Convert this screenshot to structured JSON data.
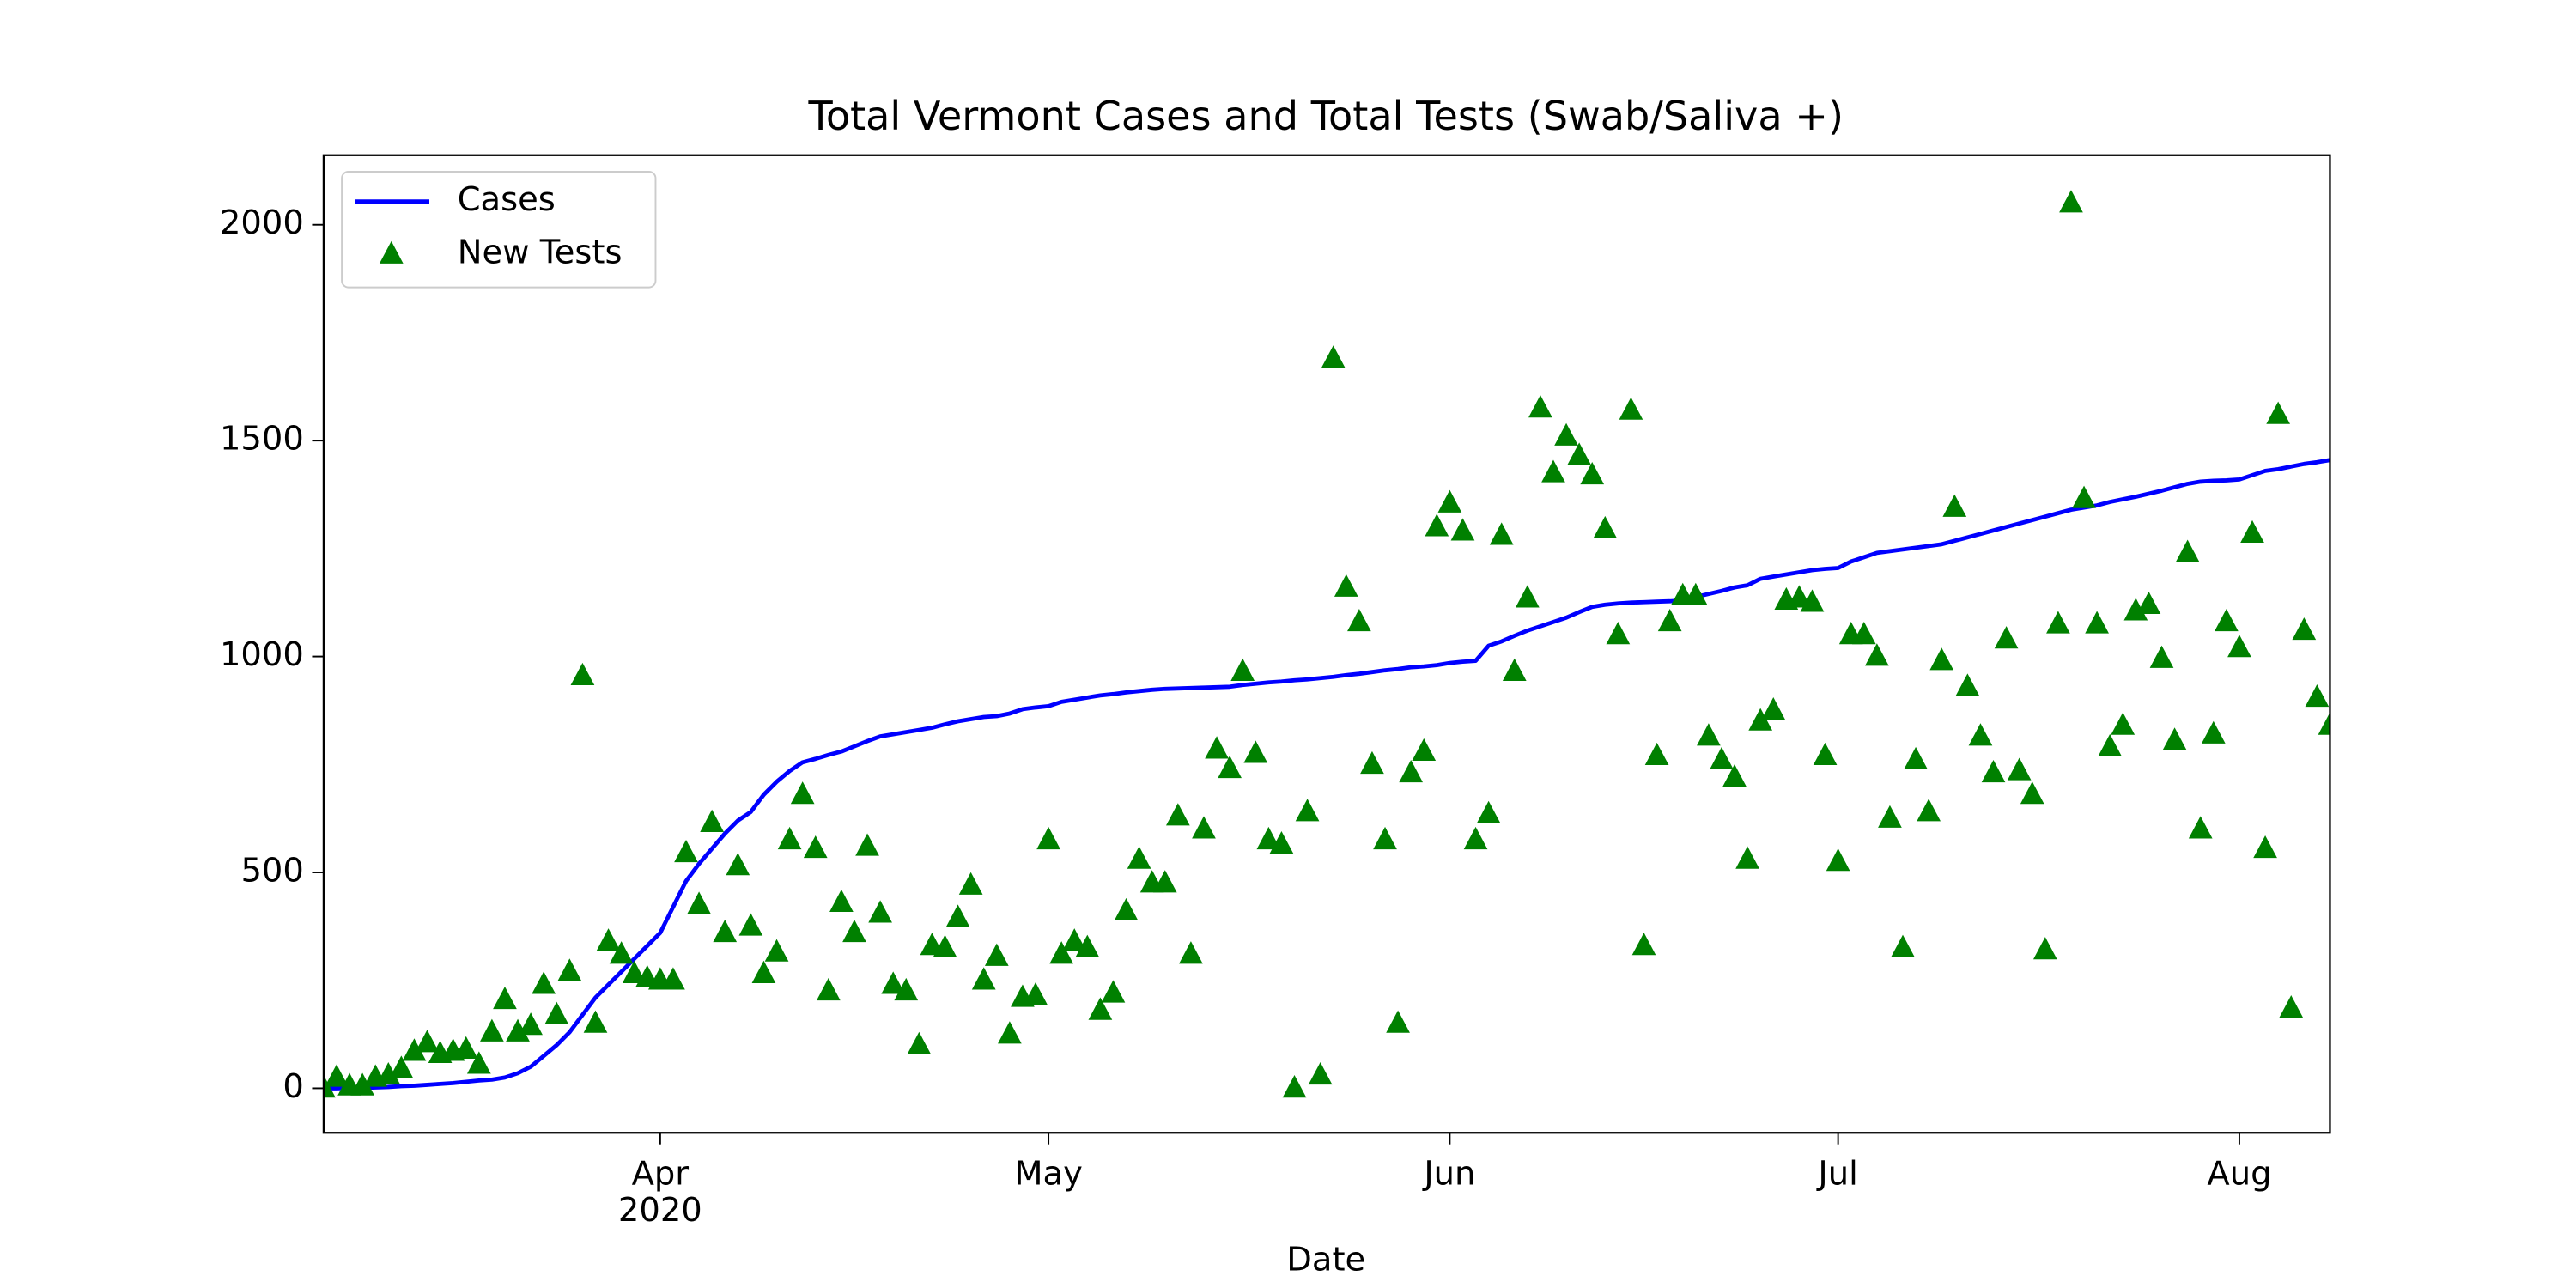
{
  "chart_data": {
    "type": "line_scatter",
    "title": "Total Vermont Cases and Total Tests (Swab/Saliva +)",
    "xlabel": "Date",
    "x_year_label": "2020",
    "x": [
      "2020-03-06",
      "2020-03-07",
      "2020-03-08",
      "2020-03-09",
      "2020-03-10",
      "2020-03-11",
      "2020-03-12",
      "2020-03-13",
      "2020-03-14",
      "2020-03-15",
      "2020-03-16",
      "2020-03-17",
      "2020-03-18",
      "2020-03-19",
      "2020-03-20",
      "2020-03-21",
      "2020-03-22",
      "2020-03-23",
      "2020-03-24",
      "2020-03-25",
      "2020-03-26",
      "2020-03-27",
      "2020-03-28",
      "2020-03-29",
      "2020-03-30",
      "2020-03-31",
      "2020-04-01",
      "2020-04-02",
      "2020-04-03",
      "2020-04-04",
      "2020-04-05",
      "2020-04-06",
      "2020-04-07",
      "2020-04-08",
      "2020-04-09",
      "2020-04-10",
      "2020-04-11",
      "2020-04-12",
      "2020-04-13",
      "2020-04-14",
      "2020-04-15",
      "2020-04-16",
      "2020-04-17",
      "2020-04-18",
      "2020-04-19",
      "2020-04-20",
      "2020-04-21",
      "2020-04-22",
      "2020-04-23",
      "2020-04-24",
      "2020-04-25",
      "2020-04-26",
      "2020-04-27",
      "2020-04-28",
      "2020-04-29",
      "2020-04-30",
      "2020-05-01",
      "2020-05-02",
      "2020-05-03",
      "2020-05-04",
      "2020-05-05",
      "2020-05-06",
      "2020-05-07",
      "2020-05-08",
      "2020-05-09",
      "2020-05-10",
      "2020-05-11",
      "2020-05-12",
      "2020-05-13",
      "2020-05-14",
      "2020-05-15",
      "2020-05-16",
      "2020-05-17",
      "2020-05-18",
      "2020-05-19",
      "2020-05-20",
      "2020-05-21",
      "2020-05-22",
      "2020-05-23",
      "2020-05-24",
      "2020-05-25",
      "2020-05-26",
      "2020-05-27",
      "2020-05-28",
      "2020-05-29",
      "2020-05-30",
      "2020-05-31",
      "2020-06-01",
      "2020-06-02",
      "2020-06-03",
      "2020-06-04",
      "2020-06-05",
      "2020-06-06",
      "2020-06-07",
      "2020-06-08",
      "2020-06-09",
      "2020-06-10",
      "2020-06-11",
      "2020-06-12",
      "2020-06-13",
      "2020-06-14",
      "2020-06-15",
      "2020-06-16",
      "2020-06-17",
      "2020-06-18",
      "2020-06-19",
      "2020-06-20",
      "2020-06-21",
      "2020-06-22",
      "2020-06-23",
      "2020-06-24",
      "2020-06-25",
      "2020-06-26",
      "2020-06-27",
      "2020-06-28",
      "2020-06-29",
      "2020-06-30",
      "2020-07-01",
      "2020-07-02",
      "2020-07-03",
      "2020-07-04",
      "2020-07-05",
      "2020-07-06",
      "2020-07-07",
      "2020-07-08",
      "2020-07-09",
      "2020-07-10",
      "2020-07-11",
      "2020-07-12",
      "2020-07-13",
      "2020-07-14",
      "2020-07-15",
      "2020-07-16",
      "2020-07-17",
      "2020-07-18",
      "2020-07-19",
      "2020-07-20",
      "2020-07-21",
      "2020-07-22",
      "2020-07-23",
      "2020-07-24",
      "2020-07-25",
      "2020-07-26",
      "2020-07-27",
      "2020-07-28",
      "2020-07-29",
      "2020-07-30",
      "2020-07-31",
      "2020-08-01",
      "2020-08-02",
      "2020-08-03",
      "2020-08-04",
      "2020-08-05",
      "2020-08-06",
      "2020-08-07",
      "2020-08-08"
    ],
    "series": [
      {
        "name": "Cases",
        "color": "#0000ff",
        "style": "line",
        "values": [
          0,
          0,
          1,
          1,
          2,
          3,
          5,
          6,
          8,
          10,
          12,
          15,
          18,
          20,
          25,
          35,
          50,
          75,
          100,
          130,
          170,
          210,
          240,
          270,
          300,
          330,
          360,
          420,
          480,
          520,
          555,
          590,
          620,
          640,
          680,
          710,
          735,
          755,
          763,
          772,
          780,
          792,
          804,
          815,
          820,
          825,
          830,
          835,
          843,
          850,
          855,
          860,
          862,
          868,
          878,
          882,
          885,
          895,
          900,
          905,
          910,
          913,
          917,
          920,
          923,
          925,
          926,
          927,
          928,
          929,
          930,
          934,
          937,
          940,
          942,
          945,
          947,
          950,
          953,
          957,
          960,
          964,
          968,
          971,
          975,
          977,
          980,
          985,
          988,
          990,
          1025,
          1035,
          1048,
          1060,
          1070,
          1080,
          1090,
          1103,
          1115,
          1120,
          1123,
          1125,
          1126,
          1127,
          1128,
          1130,
          1138,
          1145,
          1152,
          1160,
          1165,
          1180,
          1185,
          1190,
          1195,
          1200,
          1203,
          1205,
          1220,
          1230,
          1240,
          1244,
          1248,
          1252,
          1256,
          1260,
          1268,
          1276,
          1284,
          1292,
          1300,
          1308,
          1316,
          1324,
          1332,
          1340,
          1345,
          1350,
          1358,
          1364,
          1370,
          1377,
          1384,
          1392,
          1400,
          1405,
          1407,
          1408,
          1410,
          1420,
          1430,
          1434,
          1440,
          1446,
          1450,
          1455
        ]
      },
      {
        "name": "New Tests",
        "color": "#008000",
        "style": "triangle",
        "values": [
          0,
          25,
          5,
          5,
          25,
          30,
          45,
          85,
          105,
          80,
          85,
          90,
          55,
          130,
          205,
          130,
          145,
          240,
          170,
          270,
          955,
          150,
          340,
          310,
          265,
          255,
          250,
          250,
          545,
          425,
          615,
          360,
          515,
          375,
          265,
          315,
          575,
          680,
          555,
          225,
          430,
          360,
          560,
          405,
          240,
          225,
          100,
          330,
          325,
          395,
          470,
          250,
          305,
          125,
          210,
          215,
          575,
          310,
          340,
          325,
          180,
          220,
          410,
          530,
          475,
          475,
          630,
          310,
          600,
          785,
          740,
          965,
          775,
          575,
          565,
          0,
          640,
          30,
          1690,
          1160,
          1080,
          750,
          575,
          150,
          730,
          780,
          1300,
          1355,
          1290,
          575,
          635,
          1280,
          965,
          1135,
          1575,
          1425,
          1510,
          1465,
          1420,
          1295,
          1050,
          1570,
          330,
          770,
          1080,
          1140,
          1140,
          815,
          760,
          720,
          530,
          850,
          875,
          1130,
          1135,
          1125,
          770,
          525,
          1050,
          1050,
          1000,
          625,
          325,
          760,
          640,
          990,
          1345,
          930,
          815,
          730,
          1040,
          735,
          680,
          320,
          1075,
          2050,
          1365,
          1075,
          790,
          840,
          1105,
          1120,
          995,
          805,
          1240,
          600,
          820,
          1080,
          1020,
          1285,
          555,
          1560,
          185,
          1060,
          905,
          840
        ]
      }
    ],
    "xlim": [
      "2020-03-06",
      "2020-08-08"
    ],
    "xticks": [
      {
        "value": "2020-04-01",
        "label": "Apr"
      },
      {
        "value": "2020-05-01",
        "label": "May"
      },
      {
        "value": "2020-06-01",
        "label": "Jun"
      },
      {
        "value": "2020-07-01",
        "label": "Jul"
      },
      {
        "value": "2020-08-01",
        "label": "Aug"
      }
    ],
    "ylim": [
      -103,
      2161
    ],
    "yticks": [
      0,
      500,
      1000,
      1500,
      2000
    ],
    "legend": "upper left",
    "grid": false
  }
}
